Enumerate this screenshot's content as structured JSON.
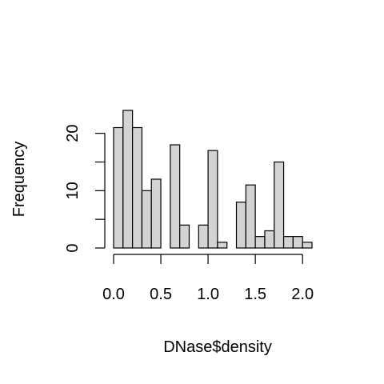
{
  "chart_data": {
    "type": "histogram",
    "title": "",
    "xlabel": "DNase$density",
    "ylabel": "Frequency",
    "bin_width": 0.1,
    "bins": [
      {
        "start": 0.0,
        "end": 0.1,
        "count": 21
      },
      {
        "start": 0.1,
        "end": 0.2,
        "count": 24
      },
      {
        "start": 0.2,
        "end": 0.3,
        "count": 21
      },
      {
        "start": 0.3,
        "end": 0.4,
        "count": 10
      },
      {
        "start": 0.4,
        "end": 0.5,
        "count": 12
      },
      {
        "start": 0.5,
        "end": 0.6,
        "count": 0
      },
      {
        "start": 0.6,
        "end": 0.7,
        "count": 18
      },
      {
        "start": 0.7,
        "end": 0.8,
        "count": 4
      },
      {
        "start": 0.8,
        "end": 0.9,
        "count": 0
      },
      {
        "start": 0.9,
        "end": 1.0,
        "count": 4
      },
      {
        "start": 1.0,
        "end": 1.1,
        "count": 17
      },
      {
        "start": 1.1,
        "end": 1.2,
        "count": 1
      },
      {
        "start": 1.2,
        "end": 1.3,
        "count": 0
      },
      {
        "start": 1.3,
        "end": 1.4,
        "count": 8
      },
      {
        "start": 1.4,
        "end": 1.5,
        "count": 11
      },
      {
        "start": 1.5,
        "end": 1.6,
        "count": 2
      },
      {
        "start": 1.6,
        "end": 1.7,
        "count": 3
      },
      {
        "start": 1.7,
        "end": 1.8,
        "count": 15
      },
      {
        "start": 1.8,
        "end": 1.9,
        "count": 2
      },
      {
        "start": 1.9,
        "end": 2.0,
        "count": 2
      },
      {
        "start": 2.0,
        "end": 2.1,
        "count": 1
      }
    ],
    "xticks": [
      0.0,
      0.5,
      1.0,
      1.5,
      2.0
    ],
    "xtick_labels": [
      "0.0",
      "0.5",
      "1.0",
      "1.5",
      "2.0"
    ],
    "yticks": [
      0,
      5,
      10,
      15,
      20
    ],
    "ytick_labels": [
      "0",
      "",
      "10",
      "",
      "20"
    ],
    "xlim": [
      0.0,
      2.1
    ],
    "ylim": [
      0,
      24
    ],
    "grid": false,
    "bar_color": "#d3d3d3"
  }
}
